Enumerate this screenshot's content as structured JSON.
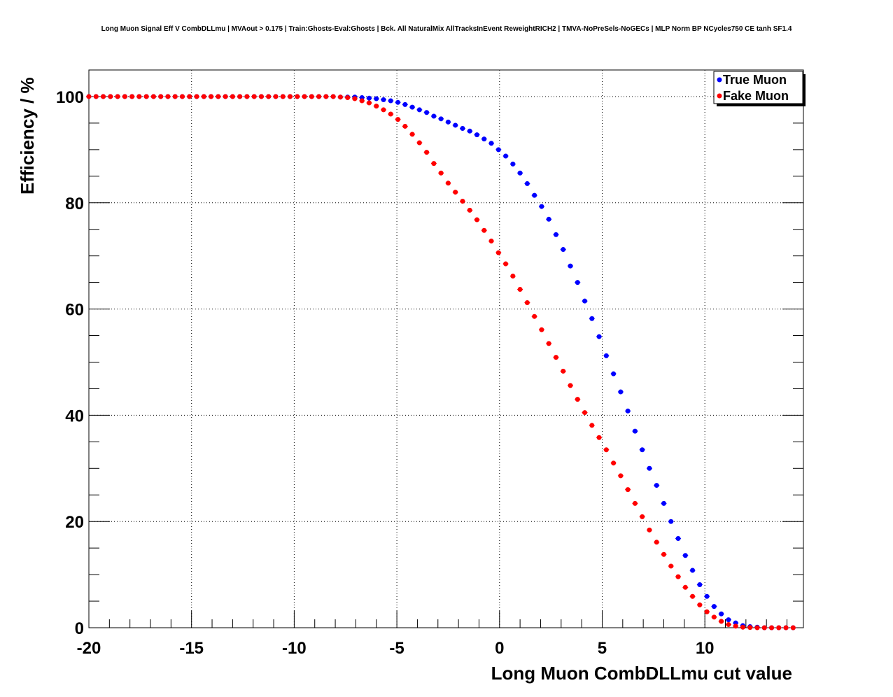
{
  "chart_data": {
    "type": "scatter",
    "title": "Long Muon Signal Eff V CombDLLmu | MVAout > 0.175 | Train:Ghosts-Eval:Ghosts | Bck. All NaturalMix AllTracksInEvent ReweightRICH2 | TMVA-NoPreSels-NoGECs | MLP Norm BP NCycles750 CE tanh SF1.4",
    "xlabel": "Long Muon CombDLLmu cut value",
    "ylabel": "Efficiency / %",
    "xlim": [
      -20,
      14.8
    ],
    "ylim": [
      0,
      105
    ],
    "x_ticks": [
      "-20",
      "-15",
      "-10",
      "-5",
      "0",
      "5",
      "10"
    ],
    "y_ticks": [
      "0",
      "20",
      "40",
      "60",
      "80",
      "100"
    ],
    "grid": true,
    "legend_position": "top-right",
    "colors": {
      "true_muon": "#0000ff",
      "fake_muon": "#ff0000"
    },
    "x": [
      -20.0,
      -19.65,
      -19.3,
      -18.95,
      -18.6,
      -18.25,
      -17.9,
      -17.55,
      -17.2,
      -16.85,
      -16.5,
      -16.15,
      -15.8,
      -15.45,
      -15.1,
      -14.75,
      -14.4,
      -14.05,
      -13.7,
      -13.35,
      -13.0,
      -12.65,
      -12.3,
      -11.95,
      -11.6,
      -11.25,
      -10.9,
      -10.55,
      -10.2,
      -9.85,
      -9.5,
      -9.15,
      -8.8,
      -8.45,
      -8.1,
      -7.75,
      -7.4,
      -7.05,
      -6.7,
      -6.35,
      -6.0,
      -5.65,
      -5.3,
      -4.95,
      -4.6,
      -4.25,
      -3.9,
      -3.55,
      -3.2,
      -2.85,
      -2.5,
      -2.15,
      -1.8,
      -1.45,
      -1.1,
      -0.75,
      -0.4,
      -0.05,
      0.3,
      0.65,
      1.0,
      1.35,
      1.7,
      2.05,
      2.4,
      2.75,
      3.1,
      3.45,
      3.8,
      4.15,
      4.5,
      4.85,
      5.2,
      5.55,
      5.9,
      6.25,
      6.6,
      6.95,
      7.3,
      7.65,
      8.0,
      8.35,
      8.7,
      9.05,
      9.4,
      9.75,
      10.1,
      10.45,
      10.8,
      11.15,
      11.5,
      11.85,
      12.2,
      12.55,
      12.9,
      13.25,
      13.6,
      13.95,
      14.3
    ],
    "series": [
      {
        "name": "True Muon",
        "values": [
          100.0,
          100.0,
          100.0,
          100.0,
          100.0,
          100.0,
          100.0,
          100.0,
          100.0,
          100.0,
          100.0,
          100.0,
          100.0,
          100.0,
          100.0,
          100.0,
          100.0,
          100.0,
          100.0,
          100.0,
          100.0,
          100.0,
          100.0,
          100.0,
          100.0,
          100.0,
          100.0,
          100.0,
          100.0,
          100.0,
          100.0,
          100.0,
          100.0,
          100.0,
          100.0,
          99.9,
          99.9,
          99.9,
          99.8,
          99.7,
          99.6,
          99.4,
          99.2,
          98.9,
          98.5,
          98.0,
          97.5,
          97.0,
          96.3,
          95.8,
          95.2,
          94.6,
          94.0,
          93.5,
          92.8,
          92.0,
          91.2,
          90.0,
          88.8,
          87.3,
          85.6,
          83.6,
          81.4,
          79.3,
          76.9,
          74.0,
          71.2,
          68.1,
          65.0,
          61.5,
          58.2,
          54.8,
          51.2,
          47.8,
          44.4,
          40.8,
          37.0,
          33.5,
          30.0,
          26.8,
          23.4,
          20.0,
          16.8,
          13.6,
          10.8,
          8.1,
          5.9,
          4.0,
          2.6,
          1.5,
          0.9,
          0.4,
          0.2,
          0.1,
          0.0,
          0.0,
          0.0,
          0.0,
          0.0
        ]
      },
      {
        "name": "Fake Muon",
        "values": [
          100.0,
          100.0,
          100.0,
          100.0,
          100.0,
          100.0,
          100.0,
          100.0,
          100.0,
          100.0,
          100.0,
          100.0,
          100.0,
          100.0,
          100.0,
          100.0,
          100.0,
          100.0,
          100.0,
          100.0,
          100.0,
          100.0,
          100.0,
          100.0,
          100.0,
          100.0,
          100.0,
          100.0,
          100.0,
          100.0,
          100.0,
          100.0,
          100.0,
          100.0,
          100.0,
          99.9,
          99.8,
          99.6,
          99.2,
          98.8,
          98.2,
          97.5,
          96.7,
          95.7,
          94.4,
          92.9,
          91.3,
          89.5,
          87.4,
          85.6,
          83.7,
          82.0,
          80.3,
          78.6,
          76.8,
          74.8,
          72.8,
          70.6,
          68.5,
          66.2,
          63.7,
          61.2,
          58.6,
          56.1,
          53.5,
          50.9,
          48.3,
          45.6,
          43.0,
          40.5,
          38.1,
          35.8,
          33.5,
          31.0,
          28.6,
          26.0,
          23.4,
          20.9,
          18.4,
          16.1,
          13.8,
          11.6,
          9.6,
          7.6,
          5.9,
          4.3,
          3.0,
          2.0,
          1.2,
          0.6,
          0.3,
          0.1,
          0.05,
          0.0,
          0.0,
          0.0,
          0.0,
          0.0,
          0.0
        ]
      }
    ]
  }
}
